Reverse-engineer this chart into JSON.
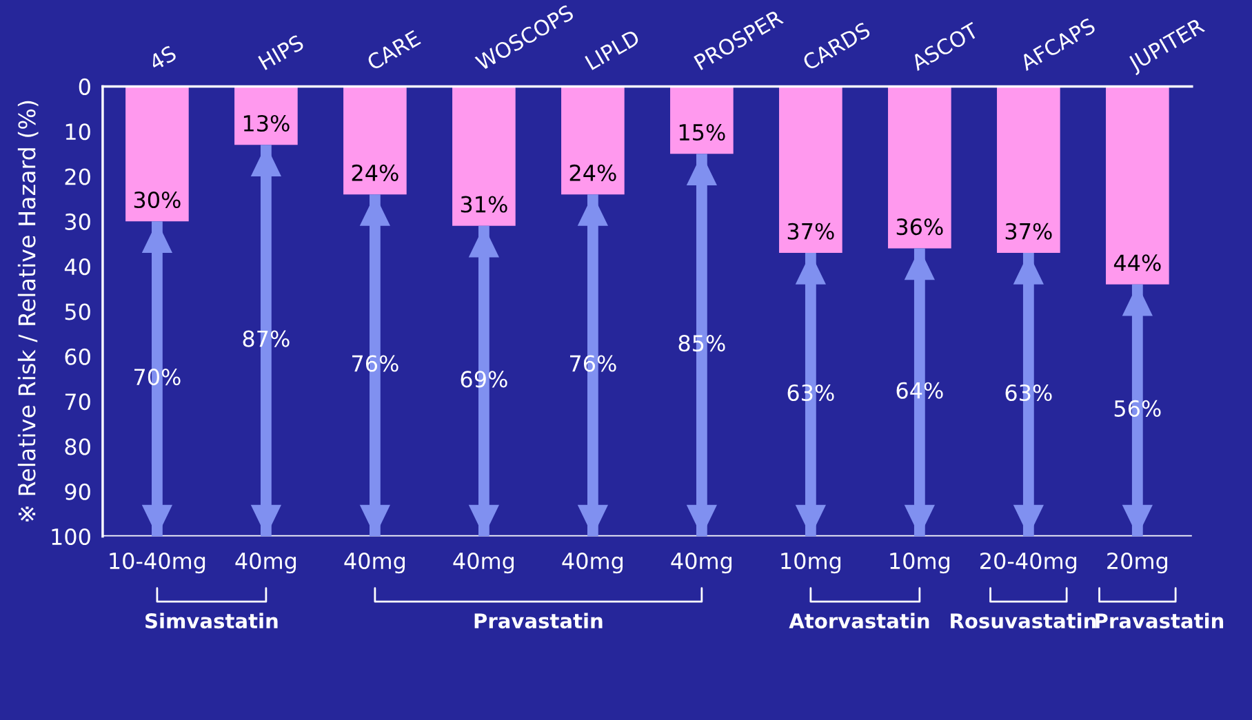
{
  "chart_data": {
    "type": "bar",
    "stacked": true,
    "categories": [
      "4S",
      "HIPS",
      "CARE",
      "WOSCOPS",
      "LIPLD",
      "PROSPER",
      "CARDS",
      "ASCOT",
      "AFCAPS",
      "JUPITER"
    ],
    "series": [
      {
        "color": "#ff99ee",
        "values": [
          30,
          13,
          24,
          31,
          24,
          15,
          37,
          36,
          37,
          44
        ],
        "value_labels": [
          "30%",
          "13%",
          "24%",
          "31%",
          "24%",
          "15%",
          "37%",
          "36%",
          "37%",
          "44%"
        ]
      },
      {
        "color": "#8090f0",
        "values": [
          70,
          87,
          76,
          69,
          76,
          85,
          63,
          64,
          63,
          56
        ],
        "value_labels": [
          "70%",
          "87%",
          "76%",
          "69%",
          "76%",
          "85%",
          "63%",
          "64%",
          "63%",
          "56%"
        ]
      }
    ],
    "ylabel": "※ Relative Risk / Relative Hazard (%)",
    "ylim": [
      100,
      0
    ],
    "yticks": [
      0,
      10,
      20,
      30,
      40,
      50,
      60,
      70,
      80,
      90,
      100
    ],
    "annotations": [
      "10-40mg",
      "40mg",
      "40mg",
      "40mg",
      "40mg",
      "40mg",
      "10mg",
      "10mg",
      "20-40mg",
      "20mg",
      "Simvastatin",
      "Pravastatin",
      "Atorvastatin",
      "Rosuvastatin",
      "Pravastatin"
    ],
    "grid": false,
    "legend": false
  }
}
